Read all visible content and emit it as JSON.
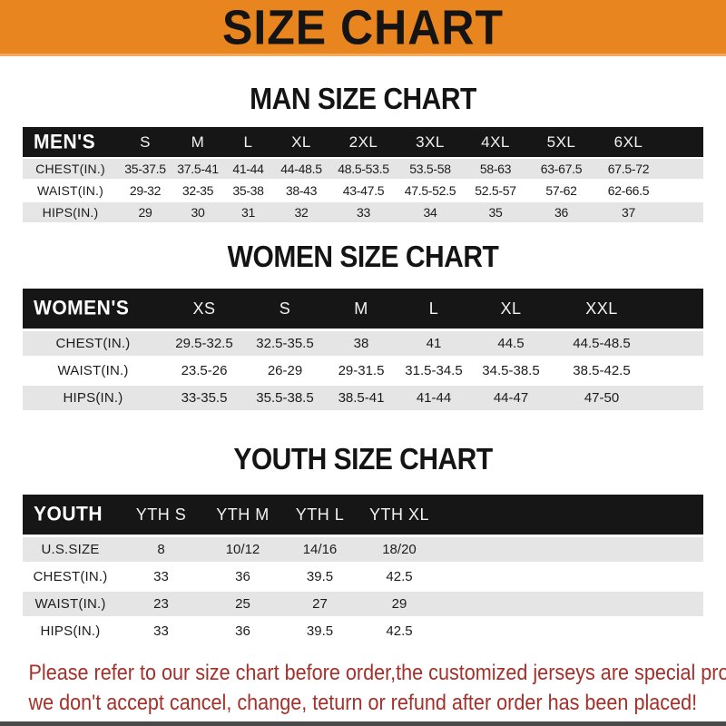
{
  "banner": {
    "title": "SIZE CHART"
  },
  "sections": [
    {
      "heading": "MAN SIZE CHART",
      "table": {
        "label": "MEN'S",
        "columns": [
          "S",
          "M",
          "L",
          "XL",
          "2XL",
          "3XL",
          "4XL",
          "5XL",
          "6XL"
        ],
        "rows": [
          {
            "label": "CHEST(IN.)",
            "values": [
              "35-37.5",
              "37.5-41",
              "41-44",
              "44-48.5",
              "48.5-53.5",
              "53.5-58",
              "58-63",
              "63-67.5",
              "67.5-72"
            ]
          },
          {
            "label": "WAIST(IN.)",
            "values": [
              "29-32",
              "32-35",
              "35-38",
              "38-43",
              "43-47.5",
              "47.5-52.5",
              "52.5-57",
              "57-62",
              "62-66.5"
            ]
          },
          {
            "label": "HIPS(IN.)",
            "values": [
              "29",
              "30",
              "31",
              "32",
              "33",
              "34",
              "35",
              "36",
              "37"
            ]
          }
        ]
      }
    },
    {
      "heading": "WOMEN SIZE CHART",
      "table": {
        "label": "WOMEN'S",
        "columns": [
          "XS",
          "S",
          "M",
          "L",
          "XL",
          "XXL"
        ],
        "rows": [
          {
            "label": "CHEST(IN.)",
            "values": [
              "29.5-32.5",
              "32.5-35.5",
              "38",
              "41",
              "44.5",
              "44.5-48.5"
            ]
          },
          {
            "label": "WAIST(IN.)",
            "values": [
              "23.5-26",
              "26-29",
              "29-31.5",
              "31.5-34.5",
              "34.5-38.5",
              "38.5-42.5"
            ]
          },
          {
            "label": "HIPS(IN.)",
            "values": [
              "33-35.5",
              "35.5-38.5",
              "38.5-41",
              "41-44",
              "44-47",
              "47-50"
            ]
          }
        ]
      }
    },
    {
      "heading": "YOUTH SIZE CHART",
      "table": {
        "label": "YOUTH",
        "columns": [
          "YTH S",
          "YTH M",
          "YTH L",
          "YTH XL"
        ],
        "rows": [
          {
            "label": "U.S.SIZE",
            "values": [
              "8",
              "10/12",
              "14/16",
              "18/20"
            ]
          },
          {
            "label": "CHEST(IN.)",
            "values": [
              "33",
              "36",
              "39.5",
              "42.5"
            ]
          },
          {
            "label": "WAIST(IN.)",
            "values": [
              "23",
              "25",
              "27",
              "29"
            ]
          },
          {
            "label": "HIPS(IN.)",
            "values": [
              "33",
              "36",
              "39.5",
              "42.5"
            ]
          }
        ]
      }
    }
  ],
  "footer": {
    "line1": "Please refer to our size chart before order,the customized jerseys are special products,",
    "line2": "we don't accept cancel, change, teturn or refund after order has been placed!"
  },
  "colors": {
    "banner_orange": "#E8851E",
    "header_black": "#161616",
    "row_gray": "#E5E5E5",
    "footer_red": "#A5302A"
  }
}
